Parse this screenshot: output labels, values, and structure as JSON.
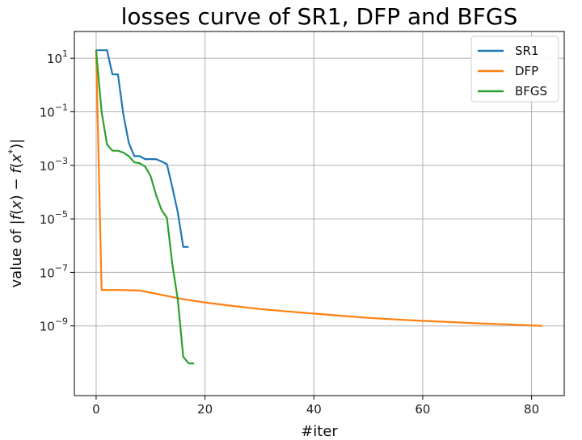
{
  "chart_data": {
    "type": "line",
    "title": "losses curve of SR1, DFP and BFGS",
    "xlabel": "#iter",
    "ylabel": "value of |f(x) − f(x*)|",
    "y_scale": "log",
    "xlim": [
      -4,
      86
    ],
    "ylim": [
      2.5e-12,
      100
    ],
    "grid": true,
    "legend_position": "top-right",
    "x_ticks": [
      {
        "value": 0,
        "label": "0"
      },
      {
        "value": 20,
        "label": "20"
      },
      {
        "value": 40,
        "label": "40"
      },
      {
        "value": 60,
        "label": "60"
      },
      {
        "value": 80,
        "label": "80"
      }
    ],
    "y_ticks": [
      {
        "exp": 1,
        "label": "10",
        "sup": "1"
      },
      {
        "exp": -1,
        "label": "10",
        "sup": "−1"
      },
      {
        "exp": -3,
        "label": "10",
        "sup": "−3"
      },
      {
        "exp": -5,
        "label": "10",
        "sup": "−5"
      },
      {
        "exp": -7,
        "label": "10",
        "sup": "−7"
      },
      {
        "exp": -9,
        "label": "10",
        "sup": "−9"
      }
    ],
    "series": [
      {
        "name": "SR1",
        "color": "#1f77b4",
        "x": [
          0,
          1,
          2,
          3,
          4,
          5,
          6,
          7,
          8,
          9,
          10,
          11,
          12,
          13,
          14,
          15,
          16,
          17
        ],
        "y": [
          20,
          20,
          20,
          2.5,
          2.5,
          0.08,
          0.007,
          0.0022,
          0.0022,
          0.0017,
          0.0017,
          0.0017,
          0.0014,
          0.0011,
          0.00015,
          1.8e-05,
          9e-07,
          9e-07
        ]
      },
      {
        "name": "DFP",
        "color": "#ff7f0e",
        "x": [
          0,
          1,
          2,
          4,
          6,
          8,
          10,
          12,
          14,
          16,
          20,
          25,
          30,
          35,
          40,
          45,
          50,
          55,
          60,
          65,
          70,
          75,
          80,
          82
        ],
        "y": [
          20,
          2.2e-08,
          2.2e-08,
          2.2e-08,
          2.15e-08,
          2.1e-08,
          1.75e-08,
          1.45e-08,
          1.2e-08,
          1e-08,
          7.5e-09,
          5.6e-09,
          4.3e-09,
          3.5e-09,
          2.9e-09,
          2.4e-09,
          2e-09,
          1.75e-09,
          1.55e-09,
          1.4e-09,
          1.25e-09,
          1.15e-09,
          1.05e-09,
          1e-09
        ]
      },
      {
        "name": "BFGS",
        "color": "#2ca02c",
        "x": [
          0,
          1,
          2,
          3,
          4,
          5,
          6,
          7,
          8,
          9,
          10,
          11,
          12,
          13,
          14,
          15,
          16,
          17,
          18
        ],
        "y": [
          20,
          0.1,
          0.006,
          0.0035,
          0.0035,
          0.003,
          0.0022,
          0.0013,
          0.0012,
          0.0009,
          0.0004,
          8e-05,
          2.2e-05,
          1.1e-05,
          2e-07,
          1e-08,
          7e-11,
          4e-11,
          4e-11
        ]
      }
    ]
  }
}
